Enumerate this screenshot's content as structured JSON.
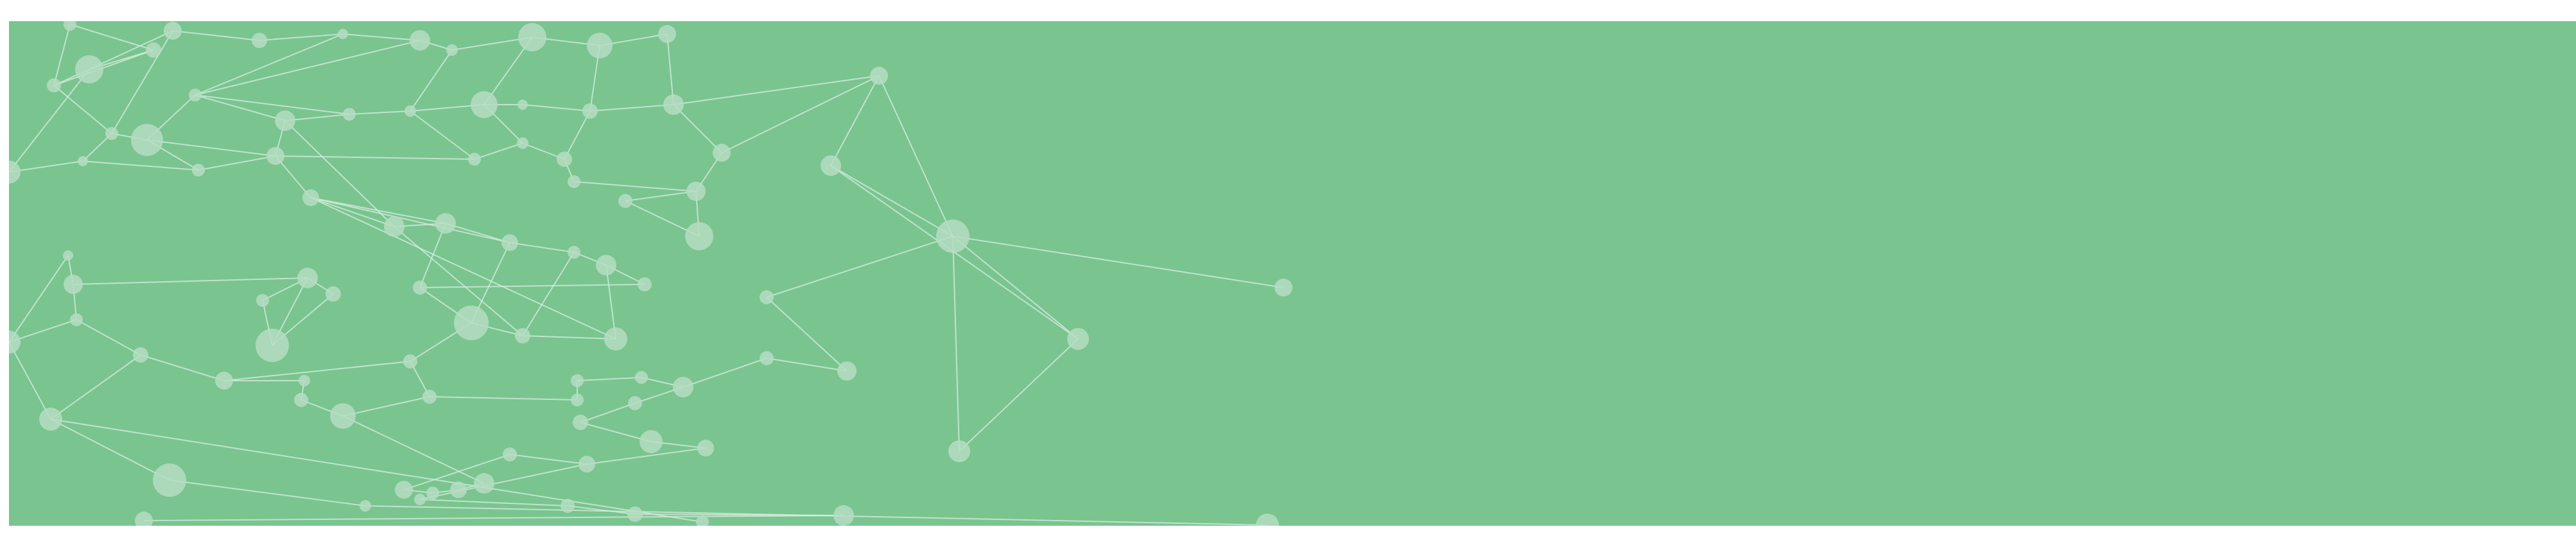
{
  "banner": {
    "background_color": "#79c48f",
    "node_color": "#b5ddc2",
    "line_color": "#d8eedf",
    "motif": "network-graph"
  }
}
